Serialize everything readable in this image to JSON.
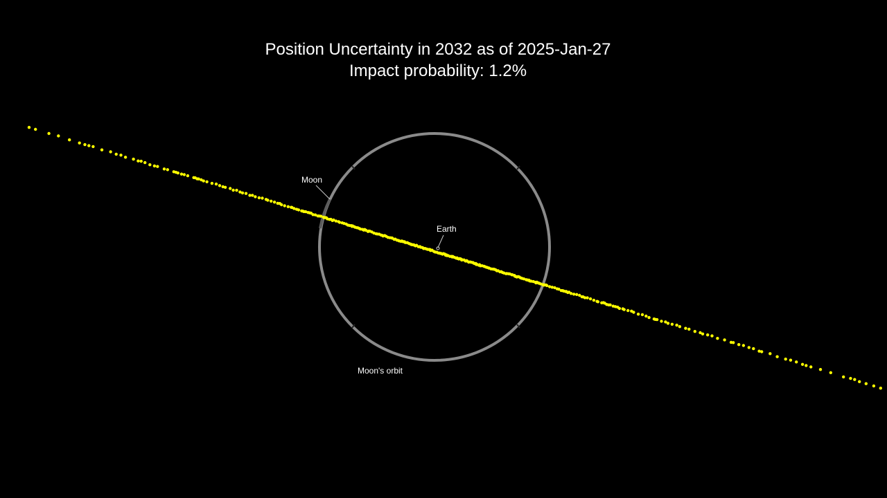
{
  "header": {
    "title": "Position Uncertainty in 2032 as of 2025-Jan-27",
    "subtitle": "Impact probability: 1.2%"
  },
  "labels": {
    "moon": "Moon",
    "earth": "Earth",
    "orbit": "Moon's orbit"
  }
}
